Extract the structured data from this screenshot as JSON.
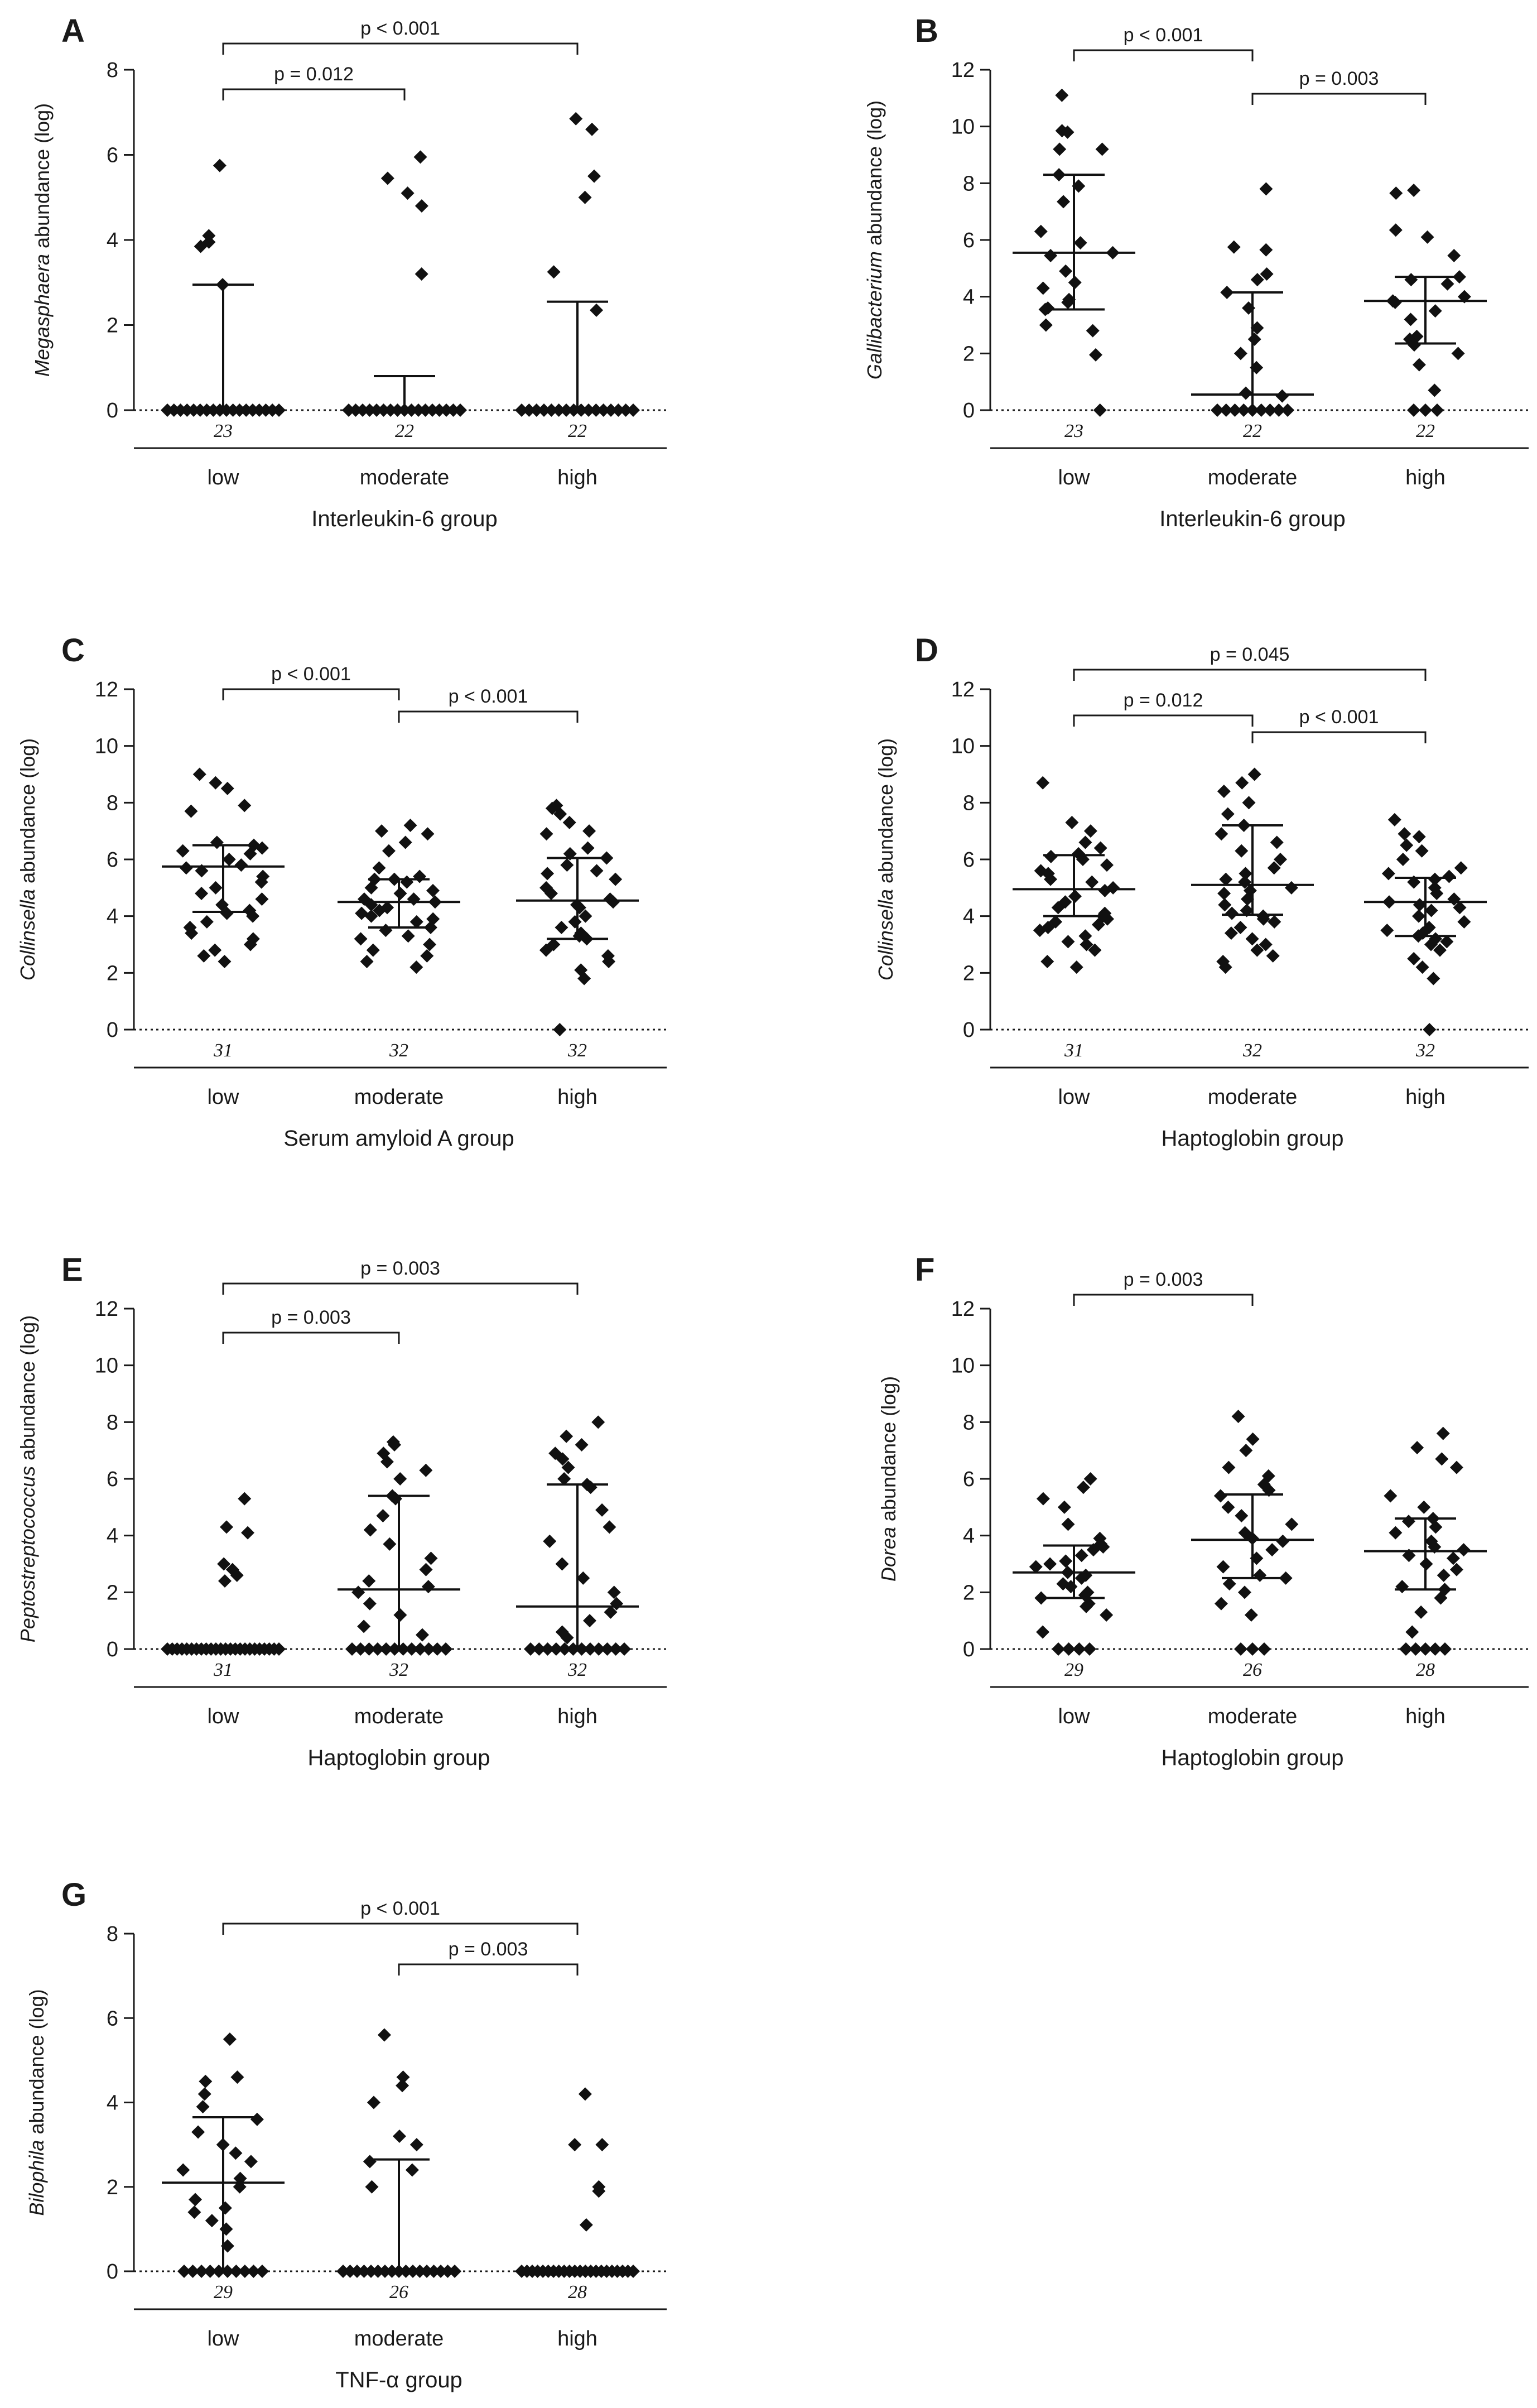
{
  "chart_data": [
    {
      "panel": "A",
      "type": "scatter",
      "ylabel_italic": "Megasphaera",
      "ylabel_rest": " abundance (log)",
      "xlabel": "Interleukin-6 group",
      "ylim": [
        0,
        8
      ],
      "yticks": [
        0,
        2,
        4,
        6,
        8
      ],
      "categories": [
        "low",
        "moderate",
        "high"
      ],
      "n": [
        "23",
        "22",
        "22"
      ],
      "median": [
        0,
        0,
        0
      ],
      "q3": [
        2.95,
        0.8,
        2.55
      ],
      "points": [
        [
          5.75,
          4.1,
          3.95,
          3.85,
          2.95,
          0,
          0,
          0,
          0,
          0,
          0,
          0,
          0,
          0,
          0,
          0,
          0,
          0,
          0,
          0,
          0,
          0,
          0
        ],
        [
          5.95,
          5.45,
          5.1,
          4.8,
          3.2,
          0,
          0,
          0,
          0,
          0,
          0,
          0,
          0,
          0,
          0,
          0,
          0,
          0,
          0,
          0,
          0,
          0
        ],
        [
          6.85,
          6.6,
          5.5,
          5.0,
          3.25,
          2.35,
          0,
          0,
          0,
          0,
          0,
          0,
          0,
          0,
          0,
          0,
          0,
          0,
          0,
          0,
          0,
          0
        ]
      ],
      "comparisons": [
        {
          "from": 0,
          "to": 2,
          "label": "p < 0.001"
        },
        {
          "from": 0,
          "to": 1,
          "label": "p = 0.012"
        }
      ]
    },
    {
      "panel": "B",
      "type": "scatter",
      "ylabel_italic": "Gallibacterium",
      "ylabel_rest": " abundance (log)",
      "xlabel": "Interleukin-6 group",
      "ylim": [
        0,
        12
      ],
      "yticks": [
        0,
        2,
        4,
        6,
        8,
        10,
        12
      ],
      "categories": [
        "low",
        "moderate",
        "high"
      ],
      "n": [
        "23",
        "22",
        "22"
      ],
      "median": [
        5.55,
        0.55,
        3.85
      ],
      "q1": [
        3.55,
        0,
        2.35
      ],
      "q3": [
        8.3,
        4.15,
        4.7
      ],
      "points": [
        [
          11.1,
          9.85,
          9.8,
          9.2,
          9.2,
          8.3,
          7.9,
          7.35,
          6.3,
          5.9,
          5.55,
          5.45,
          4.9,
          4.5,
          4.3,
          3.9,
          3.8,
          3.6,
          3.55,
          3.0,
          2.8,
          1.95,
          0
        ],
        [
          7.8,
          5.75,
          5.65,
          4.8,
          4.6,
          4.15,
          3.6,
          2.9,
          2.5,
          2.0,
          1.5,
          0.6,
          0.5,
          0,
          0,
          0,
          0,
          0,
          0,
          0,
          0,
          0
        ],
        [
          7.75,
          7.65,
          6.35,
          6.1,
          5.45,
          4.7,
          4.6,
          4.45,
          4.0,
          3.85,
          3.8,
          3.5,
          3.2,
          2.6,
          2.5,
          2.3,
          2.0,
          1.6,
          0.7,
          0,
          0,
          0
        ]
      ],
      "comparisons": [
        {
          "from": 0,
          "to": 1,
          "label": "p < 0.001"
        },
        {
          "from": 1,
          "to": 2,
          "label": "p = 0.003"
        }
      ]
    },
    {
      "panel": "C",
      "type": "scatter",
      "ylabel_italic": "Collinsella",
      "ylabel_rest": " abundance (log)",
      "xlabel": "Serum amyloid A group",
      "ylim": [
        0,
        12
      ],
      "yticks": [
        0,
        2,
        4,
        6,
        8,
        10,
        12
      ],
      "categories": [
        "low",
        "moderate",
        "high"
      ],
      "n": [
        "31",
        "32",
        "32"
      ],
      "median": [
        5.75,
        4.5,
        4.55
      ],
      "q1": [
        4.15,
        3.6,
        3.2
      ],
      "q3": [
        6.5,
        5.3,
        6.05
      ],
      "points": [
        [
          9.0,
          8.7,
          8.5,
          7.9,
          7.7,
          6.6,
          6.5,
          6.4,
          6.3,
          6.2,
          6.0,
          5.8,
          5.7,
          5.6,
          5.4,
          5.2,
          5.0,
          4.8,
          4.6,
          4.4,
          4.2,
          4.1,
          4.0,
          3.8,
          3.6,
          3.4,
          3.2,
          3.0,
          2.8,
          2.6,
          2.4
        ],
        [
          7.2,
          7.0,
          6.9,
          6.6,
          6.3,
          5.7,
          5.4,
          5.3,
          5.3,
          5.2,
          5.0,
          4.9,
          4.8,
          4.6,
          4.6,
          4.5,
          4.4,
          4.3,
          4.2,
          4.1,
          4.0,
          3.9,
          3.8,
          3.6,
          3.5,
          3.3,
          3.2,
          3.0,
          2.8,
          2.6,
          2.4,
          2.2
        ],
        [
          7.9,
          7.8,
          7.6,
          7.3,
          7.0,
          6.9,
          6.4,
          6.2,
          6.05,
          5.8,
          5.6,
          5.5,
          5.3,
          5.0,
          4.8,
          4.6,
          4.5,
          4.4,
          4.3,
          4.0,
          3.8,
          3.6,
          3.4,
          3.3,
          3.2,
          3.0,
          2.8,
          2.6,
          2.4,
          2.1,
          1.8,
          0
        ]
      ],
      "comparisons": [
        {
          "from": 0,
          "to": 1,
          "label": "p < 0.001"
        },
        {
          "from": 1,
          "to": 2,
          "label": "p < 0.001"
        }
      ]
    },
    {
      "panel": "D",
      "type": "scatter",
      "ylabel_italic": "Collinsella",
      "ylabel_rest": " abundance (log)",
      "xlabel": "Haptoglobin group",
      "ylim": [
        0,
        12
      ],
      "yticks": [
        0,
        2,
        4,
        6,
        8,
        10,
        12
      ],
      "categories": [
        "low",
        "moderate",
        "high"
      ],
      "n": [
        "31",
        "32",
        "32"
      ],
      "median": [
        4.95,
        5.1,
        4.5
      ],
      "q1": [
        4.0,
        4.05,
        3.3
      ],
      "q3": [
        6.15,
        7.2,
        5.35
      ],
      "points": [
        [
          8.7,
          7.3,
          7.0,
          6.6,
          6.4,
          6.2,
          6.1,
          6.0,
          5.8,
          5.6,
          5.5,
          5.3,
          5.2,
          5.0,
          4.9,
          4.7,
          4.5,
          4.3,
          4.1,
          4.0,
          3.9,
          3.8,
          3.7,
          3.6,
          3.5,
          3.3,
          3.1,
          3.0,
          2.8,
          2.4,
          2.2
        ],
        [
          9.0,
          8.7,
          8.4,
          8.0,
          7.6,
          7.2,
          6.9,
          6.6,
          6.3,
          6.0,
          5.7,
          5.5,
          5.3,
          5.2,
          5.0,
          4.9,
          4.8,
          4.6,
          4.4,
          4.2,
          4.1,
          4.0,
          3.9,
          3.8,
          3.6,
          3.4,
          3.2,
          3.0,
          2.8,
          2.6,
          2.4,
          2.2
        ],
        [
          7.4,
          6.9,
          6.8,
          6.5,
          6.3,
          6.0,
          5.7,
          5.5,
          5.4,
          5.3,
          5.2,
          5.0,
          4.8,
          4.6,
          4.5,
          4.4,
          4.3,
          4.2,
          4.0,
          3.8,
          3.6,
          3.5,
          3.4,
          3.3,
          3.2,
          3.1,
          3.0,
          2.8,
          2.5,
          2.2,
          1.8,
          0
        ]
      ],
      "comparisons": [
        {
          "from": 0,
          "to": 2,
          "label": "p = 0.045"
        },
        {
          "from": 0,
          "to": 1,
          "label": "p = 0.012"
        },
        {
          "from": 1,
          "to": 2,
          "label": "p < 0.001"
        }
      ]
    },
    {
      "panel": "E",
      "type": "scatter",
      "ylabel_italic": "Peptostreptococcus",
      "ylabel_rest": " abundance (log)",
      "xlabel": "Haptoglobin group",
      "ylim": [
        0,
        12
      ],
      "yticks": [
        0,
        2,
        4,
        6,
        8,
        10,
        12
      ],
      "categories": [
        "low",
        "moderate",
        "high"
      ],
      "n": [
        "31",
        "32",
        "32"
      ],
      "median": [
        0,
        2.1,
        1.5
      ],
      "q3": [
        0,
        5.4,
        5.8
      ],
      "points": [
        [
          5.3,
          4.3,
          4.1,
          3.0,
          2.8,
          2.6,
          2.4,
          0,
          0,
          0,
          0,
          0,
          0,
          0,
          0,
          0,
          0,
          0,
          0,
          0,
          0,
          0,
          0,
          0,
          0,
          0,
          0,
          0,
          0,
          0,
          0
        ],
        [
          7.3,
          7.2,
          6.9,
          6.6,
          6.3,
          6.0,
          5.4,
          5.3,
          4.7,
          4.2,
          3.7,
          3.2,
          2.8,
          2.4,
          2.2,
          2.0,
          1.6,
          1.2,
          0.8,
          0.5,
          0,
          0,
          0,
          0,
          0,
          0,
          0,
          0,
          0,
          0,
          0,
          0
        ],
        [
          8.0,
          7.5,
          7.2,
          6.9,
          6.7,
          6.4,
          6.0,
          5.8,
          5.7,
          4.9,
          4.3,
          3.8,
          3.0,
          2.5,
          2.0,
          1.6,
          1.3,
          1.0,
          0.6,
          0.4,
          0,
          0,
          0,
          0,
          0,
          0,
          0,
          0,
          0,
          0,
          0,
          0
        ]
      ],
      "comparisons": [
        {
          "from": 0,
          "to": 2,
          "label": "p = 0.003"
        },
        {
          "from": 0,
          "to": 1,
          "label": "p = 0.003"
        }
      ]
    },
    {
      "panel": "F",
      "type": "scatter",
      "ylabel_italic": "Dorea",
      "ylabel_rest": " abundance (log)",
      "xlabel": "Haptoglobin group",
      "ylim": [
        0,
        12
      ],
      "yticks": [
        0,
        2,
        4,
        6,
        8,
        10,
        12
      ],
      "categories": [
        "low",
        "moderate",
        "high"
      ],
      "n": [
        "29",
        "26",
        "28"
      ],
      "median": [
        2.7,
        3.85,
        3.45
      ],
      "q1": [
        1.8,
        2.5,
        2.1
      ],
      "q3": [
        3.65,
        5.45,
        4.6
      ],
      "points": [
        [
          6.0,
          5.7,
          5.3,
          5.0,
          4.4,
          3.9,
          3.7,
          3.6,
          3.5,
          3.3,
          3.1,
          3.0,
          2.9,
          2.7,
          2.6,
          2.5,
          2.3,
          2.2,
          2.0,
          1.9,
          1.8,
          1.6,
          1.5,
          1.2,
          0.6,
          0,
          0,
          0,
          0
        ],
        [
          8.2,
          7.4,
          7.0,
          6.4,
          6.1,
          5.8,
          5.6,
          5.4,
          5.0,
          4.7,
          4.4,
          4.1,
          3.9,
          3.8,
          3.5,
          3.2,
          2.9,
          2.6,
          2.5,
          2.3,
          2.0,
          1.6,
          1.2,
          0,
          0,
          0
        ],
        [
          7.6,
          7.1,
          6.7,
          6.4,
          5.4,
          5.0,
          4.6,
          4.5,
          4.3,
          4.1,
          3.8,
          3.6,
          3.5,
          3.3,
          3.2,
          3.0,
          2.8,
          2.6,
          2.2,
          2.1,
          1.8,
          1.3,
          0.6,
          0,
          0,
          0,
          0,
          0
        ]
      ],
      "comparisons": [
        {
          "from": 0,
          "to": 1,
          "label": "p = 0.003"
        }
      ]
    },
    {
      "panel": "G",
      "type": "scatter",
      "ylabel_italic": "Bilophila",
      "ylabel_rest": " abundance (log)",
      "xlabel": "TNF-α group",
      "ylim": [
        0,
        8
      ],
      "yticks": [
        0,
        2,
        4,
        6,
        8
      ],
      "categories": [
        "low",
        "moderate",
        "high"
      ],
      "n": [
        "29",
        "26",
        "28"
      ],
      "median": [
        2.1,
        0,
        0
      ],
      "q3": [
        3.65,
        2.65,
        0
      ],
      "points": [
        [
          5.5,
          4.6,
          4.5,
          4.2,
          3.9,
          3.6,
          3.3,
          3.0,
          2.8,
          2.6,
          2.4,
          2.2,
          2.0,
          1.7,
          1.5,
          1.4,
          1.2,
          1.0,
          0.6,
          0,
          0,
          0,
          0,
          0,
          0,
          0,
          0,
          0,
          0
        ],
        [
          5.6,
          4.6,
          4.4,
          4.0,
          3.2,
          3.0,
          2.6,
          2.4,
          2.0,
          0,
          0,
          0,
          0,
          0,
          0,
          0,
          0,
          0,
          0,
          0,
          0,
          0,
          0,
          0,
          0,
          0
        ],
        [
          4.2,
          3.0,
          3.0,
          2.0,
          1.9,
          1.1,
          0,
          0,
          0,
          0,
          0,
          0,
          0,
          0,
          0,
          0,
          0,
          0,
          0,
          0,
          0,
          0,
          0,
          0,
          0,
          0,
          0,
          0
        ]
      ],
      "comparisons": [
        {
          "from": 0,
          "to": 2,
          "label": "p < 0.001"
        },
        {
          "from": 1,
          "to": 2,
          "label": "p = 0.003"
        }
      ]
    }
  ]
}
